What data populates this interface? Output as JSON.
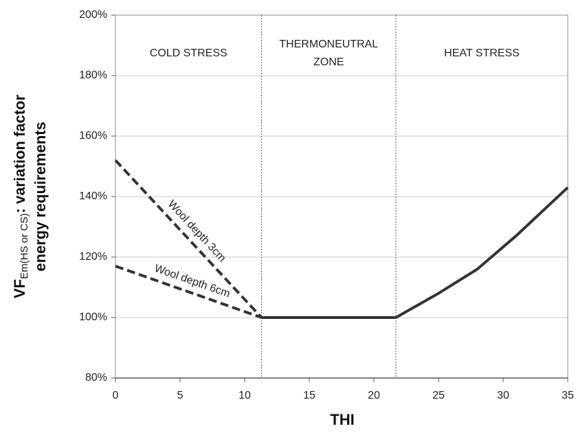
{
  "chart_data": {
    "type": "line",
    "y_label": {
      "main": "VF",
      "sub": "Em(HS or CS)",
      "rest": ": variation factor",
      "line2": "energy requirements"
    },
    "x_label": "THI",
    "xlim": [
      0,
      35
    ],
    "xticks": [
      0,
      5,
      10,
      15,
      20,
      25,
      30,
      35
    ],
    "ylim": [
      80,
      200
    ],
    "yticks": [
      {
        "value": 80,
        "label": "80%"
      },
      {
        "value": 100,
        "label": "100%"
      },
      {
        "value": 120,
        "label": "120%"
      },
      {
        "value": 140,
        "label": "140%"
      },
      {
        "value": 160,
        "label": "160%"
      },
      {
        "value": 180,
        "label": "180%"
      },
      {
        "value": 200,
        "label": "200%"
      }
    ],
    "grid": true,
    "zone_bounds": [
      11.3,
      21.7
    ],
    "zones": [
      {
        "lines": [
          "COLD STRESS"
        ]
      },
      {
        "lines": [
          "THERMONEUTRAL",
          "ZONE"
        ]
      },
      {
        "lines": [
          "HEAT STRESS"
        ]
      }
    ],
    "series": [
      {
        "name": "Wool depth 3cm",
        "color": "#333333",
        "dashed": true,
        "x": [
          0,
          11.3
        ],
        "values": [
          152,
          100
        ]
      },
      {
        "name": "Wool depth 6cm",
        "color": "#333333",
        "dashed": true,
        "x": [
          0,
          11.3
        ],
        "values": [
          117,
          100
        ]
      },
      {
        "color": "#333333",
        "dashed": false,
        "x": [
          11.3,
          21.7,
          25,
          28,
          31,
          35
        ],
        "values": [
          100,
          100,
          108,
          116,
          127,
          143
        ]
      }
    ]
  }
}
